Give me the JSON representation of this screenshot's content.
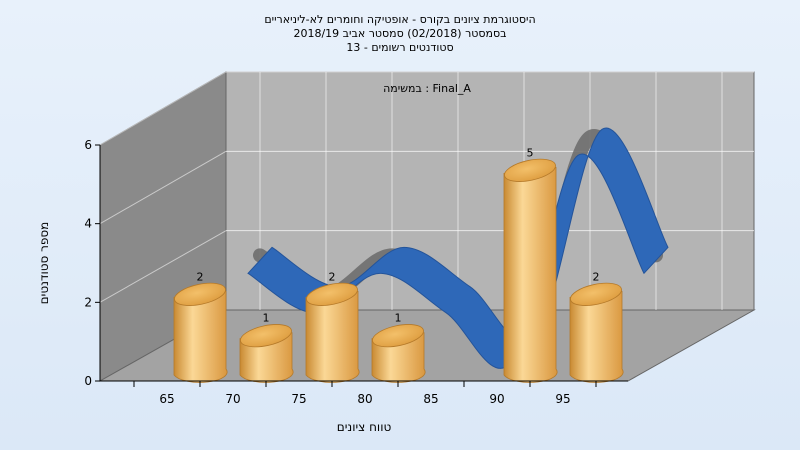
{
  "chart_data": {
    "type": "bar",
    "title_lines": [
      "היסטוגרמת ציונים בקורס - אופטיקה וחומרים לא-ליניאריים",
      "בסמסטר  (02/2018)  סמסטר אביב 2018/19",
      "סטודנטים רשומים - 13"
    ],
    "annotation": "במשימה : Final_A",
    "categories": [
      "65",
      "70",
      "75",
      "80",
      "85",
      "90",
      "95"
    ],
    "values": [
      2,
      1,
      2,
      1,
      0,
      5,
      2
    ],
    "xlabel": "טווח ציונים",
    "ylabel": "מספר סטודנטים",
    "ylim": [
      0,
      6
    ],
    "yticks": [
      0,
      2,
      4,
      6
    ],
    "grid": true,
    "legend": "none",
    "bar_style": "3d-cylinder",
    "ribbon_style": "3d-smoothed-line",
    "colors": {
      "bar_light": "#fbd896",
      "bar_mid": "#eeb45e",
      "bar_dark": "#c98a32",
      "ribbon_front": "#2e68b8",
      "ribbon_side": "#6e6e6e",
      "back_wall": "#b4b4b4",
      "side_wall": "#8a8a8a",
      "floor": "#a3a3a3"
    }
  }
}
